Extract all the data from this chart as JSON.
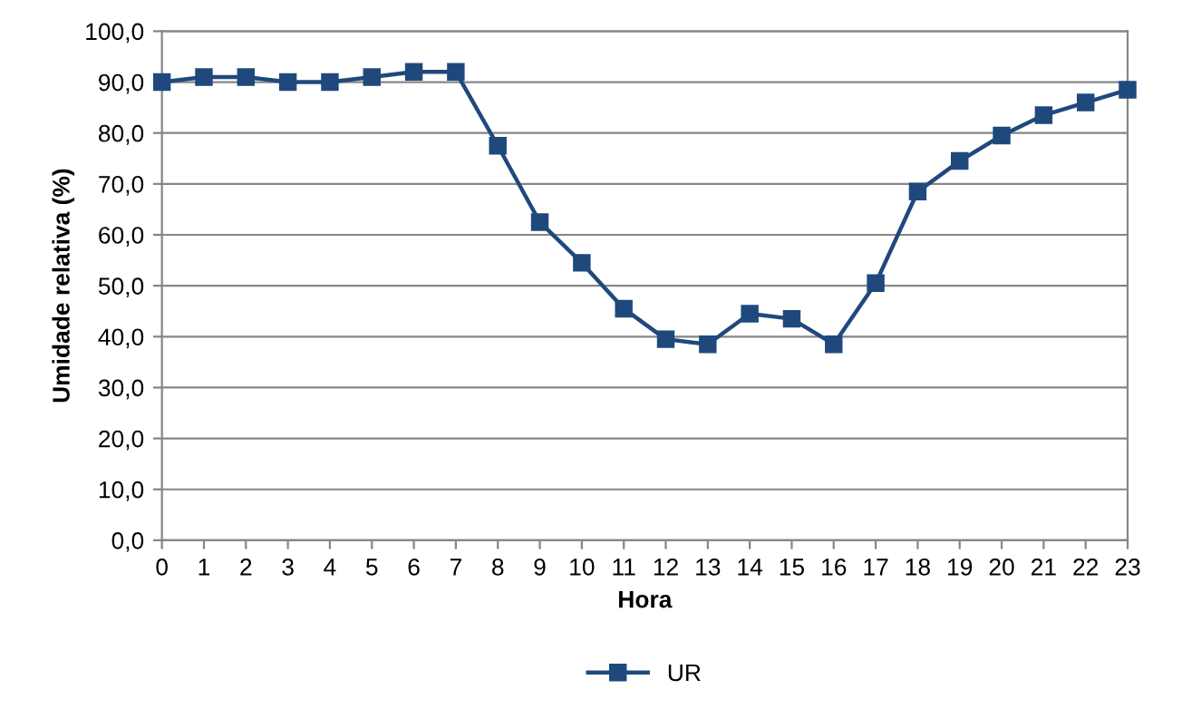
{
  "chart_data": {
    "type": "line",
    "xlabel": "Hora",
    "ylabel": "Umidade relativa (%)",
    "x": [
      0,
      1,
      2,
      3,
      4,
      5,
      6,
      7,
      8,
      9,
      10,
      11,
      12,
      13,
      14,
      15,
      16,
      17,
      18,
      19,
      20,
      21,
      22,
      23
    ],
    "series": [
      {
        "name": "UR",
        "color": "#1f497d",
        "values": [
          90,
          91,
          91,
          90,
          90,
          91,
          92,
          92,
          77.5,
          62.5,
          54.5,
          45.5,
          39.5,
          38.5,
          44.5,
          43.5,
          38.5,
          50.5,
          68.5,
          74.5,
          79.5,
          83.5,
          86,
          88.5
        ]
      }
    ],
    "xlim": [
      0,
      23
    ],
    "xticks": [
      0,
      1,
      2,
      3,
      4,
      5,
      6,
      7,
      8,
      9,
      10,
      11,
      12,
      13,
      14,
      15,
      16,
      17,
      18,
      19,
      20,
      21,
      22,
      23
    ],
    "ylim": [
      0,
      100
    ],
    "yticks": [
      {
        "value": 0,
        "label": "0,0"
      },
      {
        "value": 10,
        "label": "10,0"
      },
      {
        "value": 20,
        "label": "20,0"
      },
      {
        "value": 30,
        "label": "30,0"
      },
      {
        "value": 40,
        "label": "40,0"
      },
      {
        "value": 50,
        "label": "50,0"
      },
      {
        "value": 60,
        "label": "60,0"
      },
      {
        "value": 70,
        "label": "70,0"
      },
      {
        "value": 80,
        "label": "80,0"
      },
      {
        "value": 90,
        "label": "90,0"
      },
      {
        "value": 100,
        "label": "100,0"
      }
    ],
    "grid": "y",
    "legend": "bottom",
    "marker": "square",
    "line_style": "solid"
  }
}
